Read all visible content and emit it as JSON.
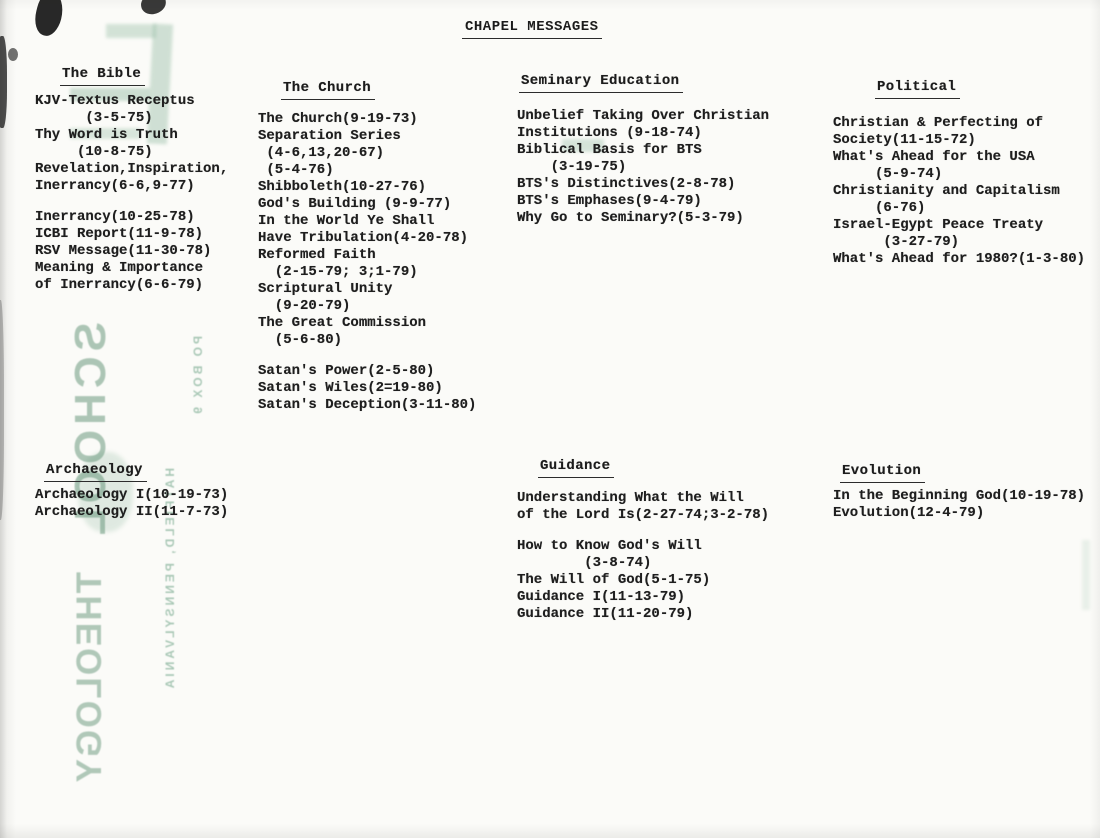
{
  "page_title": "CHAPEL MESSAGES",
  "bleed_through_stamp": {
    "word1": "SCHOOL",
    "word2": "THEOLOGY",
    "address_line1": "PO BOX 9",
    "address_line2": "HATFIELD, PENNSYLVANIA",
    "ink_color": "#6a9e80"
  },
  "sections": {
    "bible": {
      "title": "The Bible",
      "lines": [
        "KJV-Textus Receptus",
        "      (3-5-75)",
        "Thy Word is Truth",
        "     (10-8-75)",
        "Revelation,Inspiration,",
        "Inerrancy(6-6,9-77)",
        "",
        "Inerrancy(10-25-78)",
        "ICBI Report(11-9-78)",
        "RSV Message(11-30-78)",
        "Meaning & Importance",
        "of Inerrancy(6-6-79)"
      ]
    },
    "church": {
      "title": "The Church",
      "lines": [
        "The Church(9-19-73)",
        "Separation Series",
        " (4-6,13,20-67)",
        " (5-4-76)",
        "Shibboleth(10-27-76)",
        "God's Building (9-9-77)",
        "In the World Ye Shall",
        "Have Tribulation(4-20-78)",
        "Reformed Faith",
        "  (2-15-79; 3;1-79)",
        "Scriptural Unity",
        "  (9-20-79)",
        "The Great Commission",
        "  (5-6-80)",
        "",
        "Satan's Power(2-5-80)",
        "Satan's Wiles(2=19-80)",
        "Satan's Deception(3-11-80)"
      ]
    },
    "seminary": {
      "title": "Seminary Education",
      "lines": [
        "Unbelief Taking Over Christian",
        "Institutions (9-18-74)",
        "Biblical Basis for BTS",
        "    (3-19-75)",
        "BTS's Distinctives(2-8-78)",
        "BTS's Emphases(9-4-79)",
        "Why Go to Seminary?(5-3-79)"
      ]
    },
    "political": {
      "title": "Political",
      "lines": [
        "Christian & Perfecting of",
        "Society(11-15-72)",
        "What's Ahead for the USA",
        "     (5-9-74)",
        "Christianity and Capitalism",
        "     (6-76)",
        "Israel-Egypt Peace Treaty",
        "      (3-27-79)",
        "What's Ahead for 1980?(1-3-80)"
      ]
    },
    "archaeology": {
      "title": "Archaeology",
      "lines": [
        "Archaeology I(10-19-73)",
        "Archaeology II(11-7-73)"
      ]
    },
    "guidance": {
      "title": "Guidance",
      "lines": [
        "Understanding What the Will",
        "of the Lord Is(2-27-74;3-2-78)",
        "",
        "How to Know God's Will",
        "        (3-8-74)",
        "The Will of God(5-1-75)",
        "Guidance I(11-13-79)",
        "Guidance II(11-20-79)"
      ]
    },
    "evolution": {
      "title": "Evolution",
      "lines": [
        "In the Beginning God(10-19-78)",
        "Evolution(12-4-79)"
      ]
    }
  }
}
